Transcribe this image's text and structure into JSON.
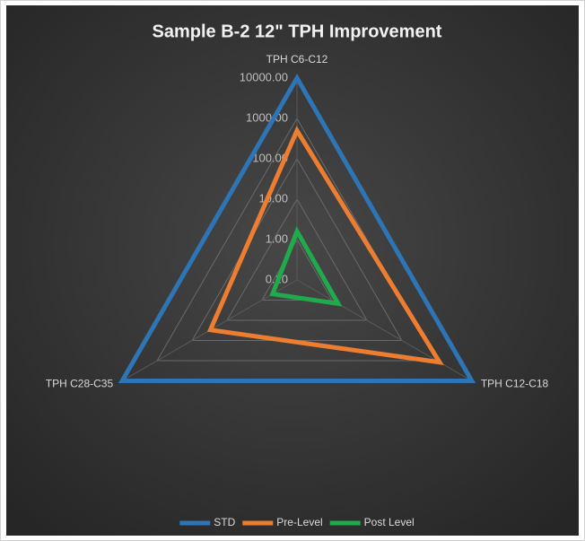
{
  "chart_data": {
    "type": "radar",
    "title": "Sample B-2 12\" TPH Improvement",
    "categories": [
      "TPH C6-C12",
      "TPH C12-C18",
      "TPH C28-C35"
    ],
    "log_scale": true,
    "grid": true,
    "legend": "bottom",
    "ylim": [
      0.1,
      10000
    ],
    "yticks": [
      {
        "value": 0.1,
        "label": "0.10"
      },
      {
        "value": 1,
        "label": "1.00"
      },
      {
        "value": 10,
        "label": "10.00"
      },
      {
        "value": 100,
        "label": "100.00"
      },
      {
        "value": 1000,
        "label": "1000.00"
      },
      {
        "value": 10000,
        "label": "10000.00"
      }
    ],
    "series": [
      {
        "name": "STD",
        "color": "#2e75b6",
        "values": [
          10000,
          10000,
          10000
        ]
      },
      {
        "name": "Pre-Level",
        "color": "#ed7d31",
        "values": [
          500,
          1200,
          30
        ]
      },
      {
        "name": "Post Level",
        "color": "#1faa4b",
        "values": [
          1.6,
          1.5,
          0.5
        ]
      }
    ]
  }
}
